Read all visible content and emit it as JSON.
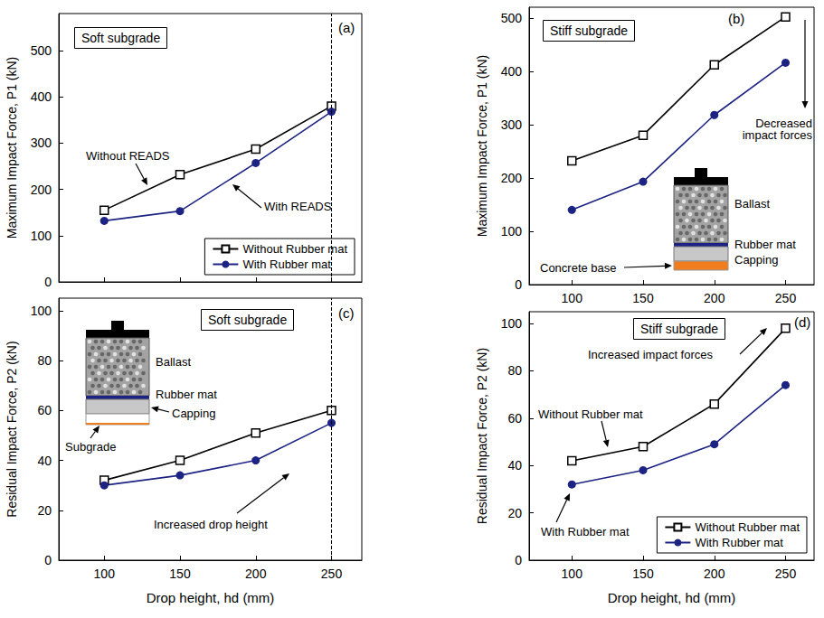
{
  "chart_data": [
    {
      "type": "line",
      "panel": "(a)",
      "title": "Soft subgrade",
      "y_label": "Maximum Impact Force, P1 (kN)",
      "x": [
        100,
        150,
        200,
        250
      ],
      "series": [
        {
          "name": "Without Rubber mat",
          "color": "#000000",
          "marker": "open_square",
          "values": [
            155,
            232,
            287,
            380
          ]
        },
        {
          "name": "With Rubber mat",
          "color": "#1c2383",
          "marker": "circle",
          "values": [
            132,
            153,
            257,
            368
          ]
        }
      ],
      "xlim": [
        70,
        270
      ],
      "xticks": [
        100,
        150,
        200,
        250
      ],
      "ylim": [
        0,
        580
      ],
      "yticks": [
        0,
        100,
        200,
        300,
        400,
        500
      ],
      "grid": false,
      "legend": "lower right",
      "tick_labels": "y",
      "vline": 250,
      "annotations": [
        "Without READS",
        "With READS"
      ]
    },
    {
      "type": "line",
      "panel": "(b)",
      "title": "Stiff subgrade",
      "y_label": "Maximum Impact Force, P1 (kN)",
      "x": [
        100,
        150,
        200,
        250
      ],
      "series": [
        {
          "name": "Without Rubber mat",
          "color": "#000000",
          "marker": "open_square",
          "values": [
            232,
            280,
            412,
            502
          ]
        },
        {
          "name": "With Rubber mat",
          "color": "#1c2383",
          "marker": "circle",
          "values": [
            140,
            193,
            318,
            416
          ]
        }
      ],
      "xlim": [
        70,
        270
      ],
      "xticks": [
        100,
        150,
        200,
        250
      ],
      "ylim": [
        0,
        520
      ],
      "yticks": [
        0,
        100,
        200,
        300,
        400,
        500
      ],
      "grid": false,
      "annotations": [
        "Decreased impact forces"
      ],
      "schematic_labels": [
        "Ballast",
        "Rubber mat",
        "Capping",
        "Concrete base"
      ]
    },
    {
      "type": "line",
      "panel": "(c)",
      "title": "Soft subgrade",
      "x_label": "Drop height, hd (mm)",
      "y_label": "Residual Impact Force, P2 (kN)",
      "x": [
        100,
        150,
        200,
        250
      ],
      "series": [
        {
          "name": "Without Rubber mat",
          "color": "#000000",
          "marker": "open_square",
          "values": [
            32,
            40,
            51,
            60
          ]
        },
        {
          "name": "With Rubber mat",
          "color": "#1c2383",
          "marker": "circle",
          "values": [
            30,
            34,
            40,
            55
          ]
        }
      ],
      "xlim": [
        70,
        270
      ],
      "xticks": [
        100,
        150,
        200,
        250
      ],
      "ylim": [
        0,
        105
      ],
      "yticks": [
        0,
        20,
        40,
        60,
        80,
        100
      ],
      "grid": false,
      "vline": 250,
      "annotations": [
        "Increased drop height"
      ],
      "schematic_labels": [
        "Ballast",
        "Rubber mat",
        "Capping",
        "Subgrade"
      ]
    },
    {
      "type": "line",
      "panel": "(d)",
      "title": "Stiff subgrade",
      "x_label": "Drop height, hd (mm)",
      "y_label": "Residual Impact Force, P2 (kN)",
      "x": [
        100,
        150,
        200,
        250
      ],
      "series": [
        {
          "name": "Without Rubber mat",
          "color": "#000000",
          "marker": "open_square",
          "values": [
            42,
            48,
            66,
            98
          ]
        },
        {
          "name": "With Rubber mat",
          "color": "#1c2383",
          "marker": "circle",
          "values": [
            32,
            38,
            49,
            74
          ]
        }
      ],
      "xlim": [
        70,
        270
      ],
      "xticks": [
        100,
        150,
        200,
        250
      ],
      "ylim": [
        0,
        105
      ],
      "yticks": [
        0,
        20,
        40,
        60,
        80,
        100
      ],
      "grid": false,
      "legend": "lower right",
      "annotations": [
        "Increased impact forces",
        "Without Rubber mat",
        "With Rubber mat"
      ]
    }
  ]
}
